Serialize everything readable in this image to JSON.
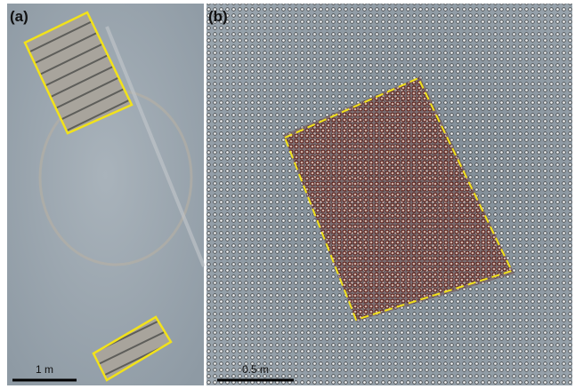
{
  "panels": [
    {
      "label": "(a)",
      "scale_bar": "1 m"
    },
    {
      "label": "(b)",
      "scale_bar": "0.5 m"
    }
  ]
}
